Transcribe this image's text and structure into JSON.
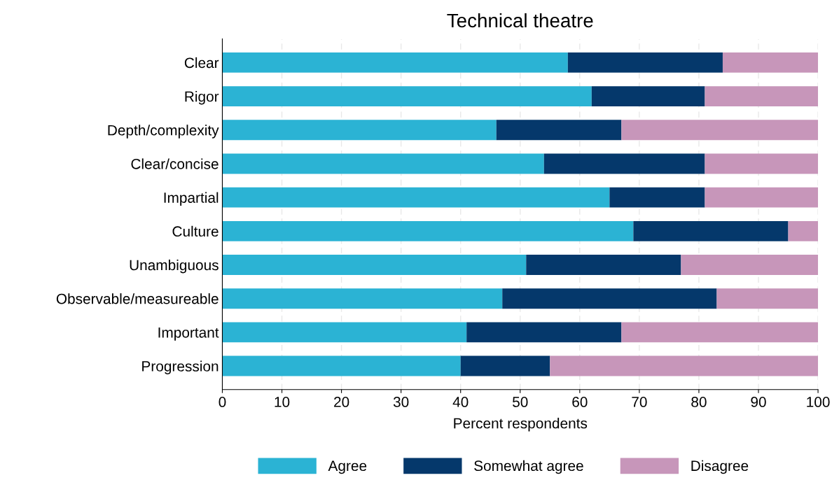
{
  "chart_data": {
    "type": "bar",
    "orientation": "horizontal",
    "stacked": true,
    "title": "Technical theatre",
    "xlabel": "Percent respondents",
    "categories": [
      "Clear",
      "Rigor",
      "Depth/complexity",
      "Clear/concise",
      "Impartial",
      "Culture",
      "Unambiguous",
      "Observable/measureable",
      "Important",
      "Progression"
    ],
    "series": [
      {
        "name": "Agree",
        "color": "#2bb3d4",
        "values": [
          58,
          62,
          46,
          54,
          65,
          69,
          51,
          47,
          41,
          40
        ]
      },
      {
        "name": "Somewhat agree",
        "color": "#05386b",
        "values": [
          26,
          19,
          21,
          27,
          16,
          26,
          26,
          36,
          26,
          15
        ]
      },
      {
        "name": "Disagree",
        "color": "#c796ba",
        "values": [
          16,
          19,
          33,
          19,
          19,
          5,
          23,
          17,
          33,
          45
        ]
      }
    ],
    "xlim": [
      0,
      100
    ],
    "xticks": [
      0,
      10,
      20,
      30,
      40,
      50,
      60,
      70,
      80,
      90,
      100
    ],
    "grid": "x",
    "legend": "bottom"
  }
}
